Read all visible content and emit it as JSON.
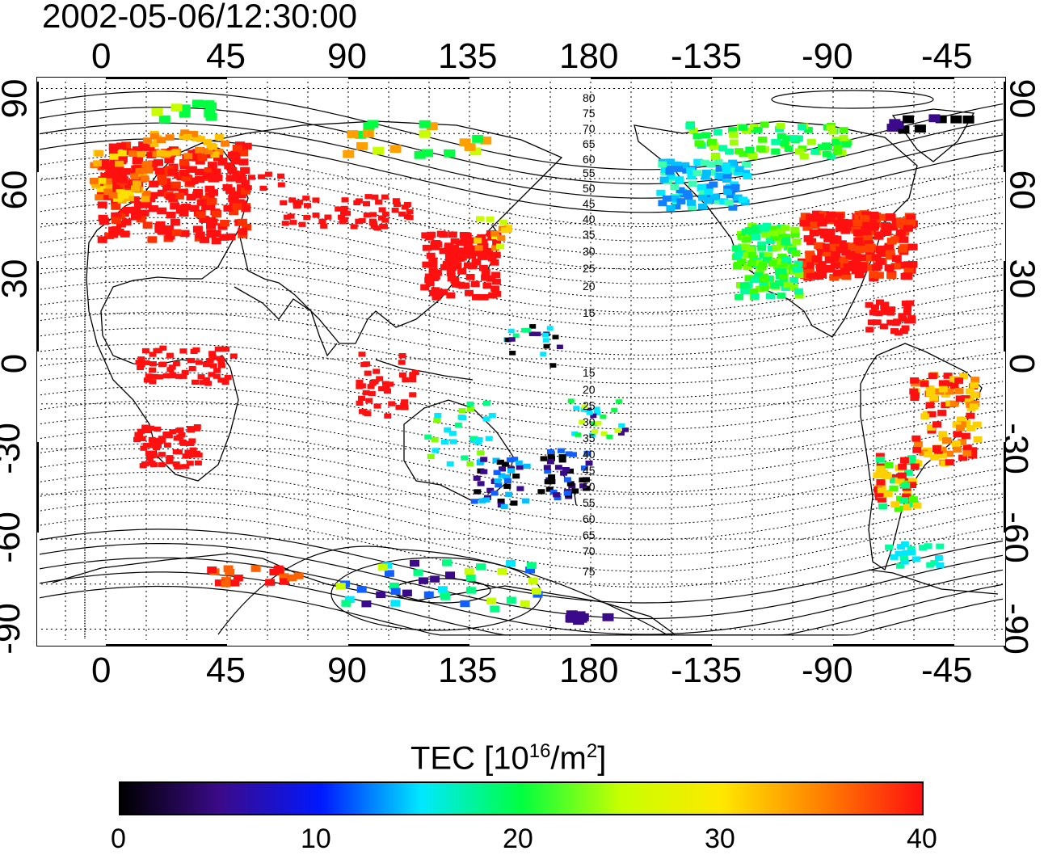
{
  "timestamp": "2002-05-06/12:30:00",
  "map": {
    "top_lon_ticks": [
      "0",
      "45",
      "90",
      "135",
      "180",
      "-135",
      "-90",
      "-45"
    ],
    "bottom_lon_ticks": [
      "0",
      "45",
      "90",
      "135",
      "180",
      "-135",
      "-90",
      "-45"
    ],
    "left_lat_ticks": [
      "90",
      "60",
      "30",
      "0",
      "-30",
      "-60",
      "-90"
    ],
    "right_lat_ticks": [
      "90",
      "60",
      "30",
      "0",
      "-30",
      "-60",
      "-90"
    ],
    "contour_labels_north": [
      "80",
      "75",
      "70",
      "65",
      "60",
      "55",
      "50",
      "45",
      "40",
      "35",
      "30",
      "25",
      "20",
      "15"
    ],
    "contour_labels_south": [
      "15",
      "20",
      "25",
      "30",
      "35",
      "40",
      "45",
      "50",
      "55",
      "60",
      "65",
      "70",
      "75"
    ],
    "lon_range": [
      -25,
      335
    ],
    "lat_range": [
      -95,
      95
    ],
    "grid": true
  },
  "colorbar": {
    "title_main": "TEC  [10",
    "title_exp": "16",
    "title_unit": "/m",
    "title_exp2": "2",
    "title_close": "]",
    "ticks": [
      "0",
      "10",
      "20",
      "30",
      "40"
    ],
    "range": [
      0,
      40
    ],
    "colors": [
      "#000000",
      "#3b0a8a",
      "#0018ff",
      "#00e8ff",
      "#00ff40",
      "#c8ff00",
      "#ffe800",
      "#ff8000",
      "#ff1010"
    ]
  },
  "colors": {
    "high": "#ff1010",
    "terminator": "#ff0000",
    "coast": "#000000"
  }
}
